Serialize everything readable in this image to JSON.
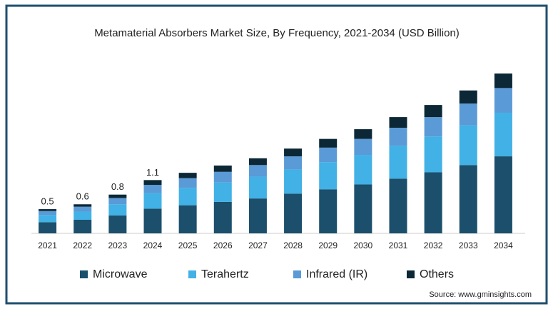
{
  "chart_data": {
    "type": "stacked_bar",
    "title": "Metamaterial Absorbers Market Size, By Frequency, 2021-2034 (USD Billion)",
    "categories": [
      "2021",
      "2022",
      "2023",
      "2024",
      "2025",
      "2026",
      "2027",
      "2028",
      "2029",
      "2030",
      "2031",
      "2032",
      "2033",
      "2034"
    ],
    "series": [
      {
        "name": "Microwave",
        "color": "#1b4f6b",
        "values": [
          0.23,
          0.28,
          0.37,
          0.51,
          0.58,
          0.65,
          0.72,
          0.82,
          0.91,
          1.01,
          1.13,
          1.26,
          1.41,
          1.59
        ]
      },
      {
        "name": "Terahertz",
        "color": "#41b1e6",
        "values": [
          0.15,
          0.17,
          0.23,
          0.32,
          0.36,
          0.4,
          0.45,
          0.5,
          0.56,
          0.61,
          0.68,
          0.74,
          0.82,
          0.9
        ]
      },
      {
        "name": "Infrared (IR)",
        "color": "#5a9ad6",
        "values": [
          0.08,
          0.1,
          0.13,
          0.17,
          0.2,
          0.22,
          0.24,
          0.27,
          0.3,
          0.33,
          0.37,
          0.4,
          0.45,
          0.51
        ]
      },
      {
        "name": "Others",
        "color": "#0c2836",
        "values": [
          0.04,
          0.05,
          0.07,
          0.1,
          0.11,
          0.13,
          0.14,
          0.16,
          0.18,
          0.2,
          0.22,
          0.25,
          0.27,
          0.3
        ]
      }
    ],
    "total_labels": [
      "0.5",
      "0.6",
      "0.8",
      "1.1"
    ],
    "ylim": [
      0,
      3.3
    ],
    "source": "Source: www.gminsights.com"
  }
}
